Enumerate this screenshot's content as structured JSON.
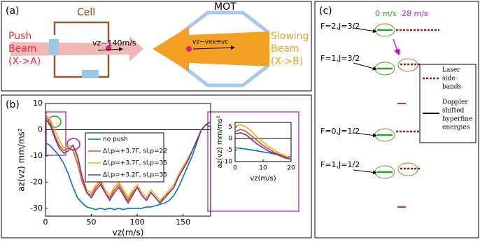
{
  "panels": {
    "a": {
      "label": "(a)",
      "cell": "Cell",
      "mot": "MOT",
      "push": [
        "Push",
        "Beam",
        "(X->A)"
      ],
      "push_speed": "vz~140m/s",
      "capture": "vz−vex≅vc",
      "slowing": [
        "Slowing",
        "Beam",
        "(X->B)"
      ]
    },
    "b": {
      "label": "(b)"
    },
    "c": {
      "label": "(c)",
      "speeds": [
        "0 m/s",
        "28 m/s"
      ],
      "levels": [
        "F=2,J=3/2",
        "F=1,J=3/2",
        "F=0,J=1/2",
        "F=1,J=1/2"
      ],
      "legend": [
        [
          "Laser",
          "side-",
          "bands"
        ],
        [
          "Doppler",
          "shifted",
          "hyperfine",
          "energies"
        ]
      ]
    }
  },
  "chart_data": [
    {
      "type": "line",
      "xlabel": "vz(m/s)",
      "ylabel": "az(vz) mm/ms²",
      "legend": true,
      "x": [
        0,
        5,
        10,
        15,
        20,
        25,
        30,
        35,
        40,
        45,
        50,
        55,
        60,
        65,
        70,
        75,
        80,
        85,
        90,
        95,
        100,
        105,
        110,
        115,
        120,
        125,
        130,
        135,
        140,
        145,
        150,
        155,
        160,
        165,
        170,
        175,
        180
      ],
      "xlim": [
        0,
        180
      ],
      "xticks": [
        0,
        50,
        100,
        150
      ],
      "ylim": [
        -33,
        10
      ],
      "yticks": [
        10,
        0,
        -10,
        -20,
        -30
      ],
      "series": [
        {
          "name": "no push",
          "color": "#0072bd",
          "values": [
            -5,
            -6,
            -8,
            -10,
            -13,
            -17,
            -22,
            -26,
            -28,
            -29.5,
            -30,
            -30.5,
            -30,
            -30.5,
            -30,
            -30.5,
            -30,
            -30.5,
            -30,
            -30,
            -30,
            -30,
            -29.5,
            -29.5,
            -29,
            -28.5,
            -28,
            -27,
            -25,
            -22,
            -18,
            -14,
            -10,
            -5,
            0,
            2,
            1
          ]
        },
        {
          "name": "Δl,p=+3.7Γ, sl,p=22",
          "color": "#d95319",
          "values": [
            5,
            3,
            -2,
            -6,
            -8,
            -7,
            -8,
            -13,
            -20,
            -24,
            -25,
            -22,
            -20,
            -24,
            -26,
            -23,
            -21,
            -24,
            -27,
            -24,
            -22,
            -25,
            -27,
            -24,
            -26,
            -28,
            -25,
            -24,
            -22,
            -18,
            -15,
            -12,
            -8,
            -4,
            0,
            2,
            3
          ]
        },
        {
          "name": "Δl,p=+3.7Γ, sl,p=35",
          "color": "#edb120",
          "values": [
            6,
            4,
            0,
            -4,
            -7,
            -6,
            -6,
            -11,
            -18,
            -23,
            -24,
            -21,
            -19,
            -23,
            -25,
            -22,
            -20,
            -23,
            -26,
            -23,
            -21,
            -24,
            -26,
            -23,
            -25,
            -27,
            -25,
            -23,
            -21,
            -17,
            -14,
            -11,
            -8,
            -4,
            0,
            2,
            3
          ]
        },
        {
          "name": "Δl,p=+3.2Γ, sl,p=35",
          "color": "#7e2f8e",
          "values": [
            4,
            2,
            -3,
            -7,
            -9,
            -8,
            -6,
            -10,
            -18,
            -24,
            -26,
            -23,
            -21,
            -24,
            -27,
            -24,
            -22,
            -25,
            -28,
            -25,
            -22,
            -25,
            -27,
            -24,
            -26,
            -28,
            -26,
            -24,
            -22,
            -18,
            -15,
            -12,
            -8,
            -4,
            0,
            2,
            3
          ]
        }
      ]
    },
    {
      "type": "line",
      "xlabel": "vz(m/s)",
      "ylabel": "az(vz) mm/ms²",
      "legend": false,
      "x": [
        0,
        2,
        4,
        6,
        8,
        10,
        12,
        14,
        16,
        18,
        20
      ],
      "xlim": [
        0,
        20
      ],
      "xticks": [
        0,
        10,
        20
      ],
      "ylim": [
        -10,
        7
      ],
      "yticks": [
        5,
        0,
        -5,
        -10
      ],
      "series": [
        {
          "color": "#0072bd",
          "values": [
            -4,
            -4.3,
            -4.6,
            -5,
            -5.4,
            -5.8,
            -6.2,
            -6.7,
            -7.2,
            -7.7,
            -8
          ]
        },
        {
          "color": "#d95319",
          "values": [
            3,
            4,
            3,
            1,
            -1,
            -3,
            -4.5,
            -6,
            -7,
            -8,
            -8.5
          ]
        },
        {
          "color": "#edb120",
          "values": [
            5.5,
            6,
            5,
            3,
            0.5,
            -1.5,
            -3.5,
            -5,
            -6.5,
            -7.5,
            -8.5
          ]
        },
        {
          "color": "#7e2f8e",
          "values": [
            2,
            2.5,
            1.5,
            -0.5,
            -2.5,
            -4,
            -5.5,
            -6.5,
            -7.5,
            -8.5,
            -9
          ]
        }
      ]
    }
  ]
}
